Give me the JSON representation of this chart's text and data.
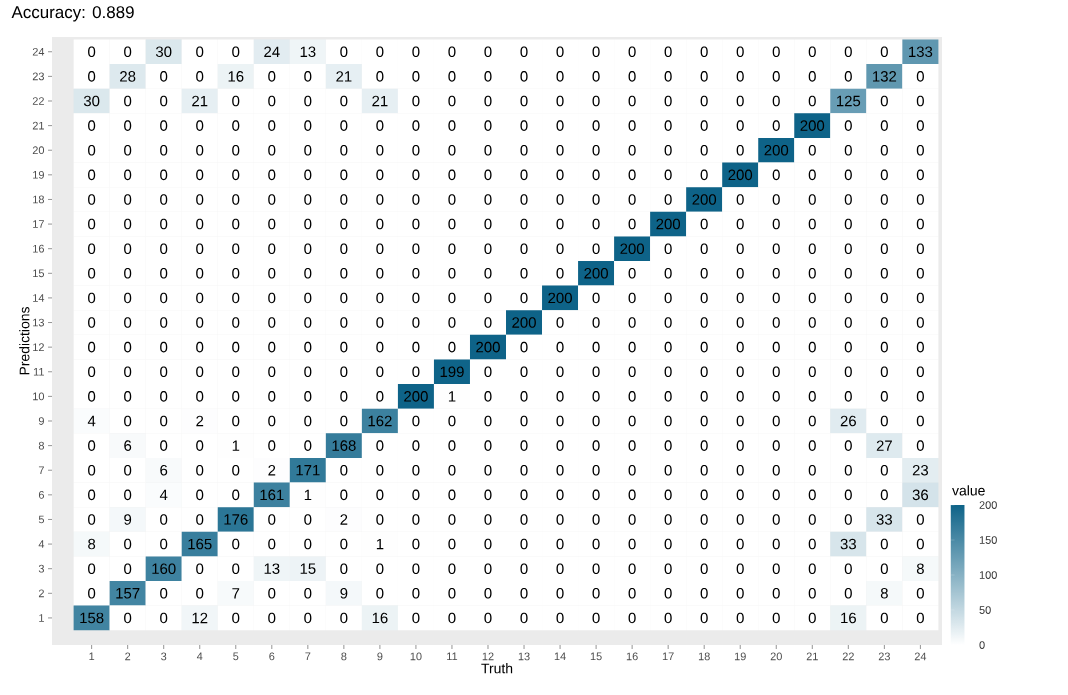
{
  "chart_data": {
    "type": "heatmap",
    "title": "Accuracy:  0.889",
    "xlabel": "Truth",
    "ylabel": "Predictions",
    "clabel": "value",
    "categories": [
      "1",
      "2",
      "3",
      "4",
      "5",
      "6",
      "7",
      "8",
      "9",
      "10",
      "11",
      "12",
      "13",
      "14",
      "15",
      "16",
      "17",
      "18",
      "19",
      "20",
      "21",
      "22",
      "23",
      "24"
    ],
    "y_categories": [
      "24",
      "23",
      "22",
      "21",
      "20",
      "19",
      "18",
      "17",
      "16",
      "15",
      "14",
      "13",
      "12",
      "11",
      "10",
      "9",
      "8",
      "7",
      "6",
      "5",
      "4",
      "3",
      "2",
      "1"
    ],
    "cells": [
      [
        0,
        0,
        30,
        0,
        0,
        24,
        13,
        0,
        0,
        0,
        0,
        0,
        0,
        0,
        0,
        0,
        0,
        0,
        0,
        0,
        0,
        0,
        0,
        133
      ],
      [
        0,
        28,
        0,
        0,
        16,
        0,
        0,
        21,
        0,
        0,
        0,
        0,
        0,
        0,
        0,
        0,
        0,
        0,
        0,
        0,
        0,
        0,
        132,
        0
      ],
      [
        30,
        0,
        0,
        21,
        0,
        0,
        0,
        0,
        21,
        0,
        0,
        0,
        0,
        0,
        0,
        0,
        0,
        0,
        0,
        0,
        0,
        125,
        0,
        0
      ],
      [
        0,
        0,
        0,
        0,
        0,
        0,
        0,
        0,
        0,
        0,
        0,
        0,
        0,
        0,
        0,
        0,
        0,
        0,
        0,
        0,
        200,
        0,
        0,
        0
      ],
      [
        0,
        0,
        0,
        0,
        0,
        0,
        0,
        0,
        0,
        0,
        0,
        0,
        0,
        0,
        0,
        0,
        0,
        0,
        0,
        200,
        0,
        0,
        0,
        0
      ],
      [
        0,
        0,
        0,
        0,
        0,
        0,
        0,
        0,
        0,
        0,
        0,
        0,
        0,
        0,
        0,
        0,
        0,
        0,
        200,
        0,
        0,
        0,
        0,
        0
      ],
      [
        0,
        0,
        0,
        0,
        0,
        0,
        0,
        0,
        0,
        0,
        0,
        0,
        0,
        0,
        0,
        0,
        0,
        200,
        0,
        0,
        0,
        0,
        0,
        0
      ],
      [
        0,
        0,
        0,
        0,
        0,
        0,
        0,
        0,
        0,
        0,
        0,
        0,
        0,
        0,
        0,
        0,
        200,
        0,
        0,
        0,
        0,
        0,
        0,
        0
      ],
      [
        0,
        0,
        0,
        0,
        0,
        0,
        0,
        0,
        0,
        0,
        0,
        0,
        0,
        0,
        0,
        200,
        0,
        0,
        0,
        0,
        0,
        0,
        0,
        0
      ],
      [
        0,
        0,
        0,
        0,
        0,
        0,
        0,
        0,
        0,
        0,
        0,
        0,
        0,
        0,
        200,
        0,
        0,
        0,
        0,
        0,
        0,
        0,
        0,
        0
      ],
      [
        0,
        0,
        0,
        0,
        0,
        0,
        0,
        0,
        0,
        0,
        0,
        0,
        0,
        200,
        0,
        0,
        0,
        0,
        0,
        0,
        0,
        0,
        0,
        0
      ],
      [
        0,
        0,
        0,
        0,
        0,
        0,
        0,
        0,
        0,
        0,
        0,
        0,
        200,
        0,
        0,
        0,
        0,
        0,
        0,
        0,
        0,
        0,
        0,
        0
      ],
      [
        0,
        0,
        0,
        0,
        0,
        0,
        0,
        0,
        0,
        0,
        0,
        200,
        0,
        0,
        0,
        0,
        0,
        0,
        0,
        0,
        0,
        0,
        0,
        0
      ],
      [
        0,
        0,
        0,
        0,
        0,
        0,
        0,
        0,
        0,
        0,
        199,
        0,
        0,
        0,
        0,
        0,
        0,
        0,
        0,
        0,
        0,
        0,
        0,
        0
      ],
      [
        0,
        0,
        0,
        0,
        0,
        0,
        0,
        0,
        0,
        200,
        1,
        0,
        0,
        0,
        0,
        0,
        0,
        0,
        0,
        0,
        0,
        0,
        0,
        0
      ],
      [
        4,
        0,
        0,
        2,
        0,
        0,
        0,
        0,
        162,
        0,
        0,
        0,
        0,
        0,
        0,
        0,
        0,
        0,
        0,
        0,
        0,
        26,
        0,
        0
      ],
      [
        0,
        6,
        0,
        0,
        1,
        0,
        0,
        168,
        0,
        0,
        0,
        0,
        0,
        0,
        0,
        0,
        0,
        0,
        0,
        0,
        0,
        0,
        27,
        0
      ],
      [
        0,
        0,
        6,
        0,
        0,
        2,
        171,
        0,
        0,
        0,
        0,
        0,
        0,
        0,
        0,
        0,
        0,
        0,
        0,
        0,
        0,
        0,
        0,
        23
      ],
      [
        0,
        0,
        4,
        0,
        0,
        161,
        1,
        0,
        0,
        0,
        0,
        0,
        0,
        0,
        0,
        0,
        0,
        0,
        0,
        0,
        0,
        0,
        0,
        36
      ],
      [
        0,
        9,
        0,
        0,
        176,
        0,
        0,
        2,
        0,
        0,
        0,
        0,
        0,
        0,
        0,
        0,
        0,
        0,
        0,
        0,
        0,
        0,
        33,
        0
      ],
      [
        8,
        0,
        0,
        165,
        0,
        0,
        0,
        0,
        1,
        0,
        0,
        0,
        0,
        0,
        0,
        0,
        0,
        0,
        0,
        0,
        0,
        33,
        0,
        0
      ],
      [
        0,
        0,
        160,
        0,
        0,
        13,
        15,
        0,
        0,
        0,
        0,
        0,
        0,
        0,
        0,
        0,
        0,
        0,
        0,
        0,
        0,
        0,
        0,
        8
      ],
      [
        0,
        157,
        0,
        0,
        7,
        0,
        0,
        9,
        0,
        0,
        0,
        0,
        0,
        0,
        0,
        0,
        0,
        0,
        0,
        0,
        0,
        0,
        8,
        0
      ],
      [
        158,
        0,
        0,
        12,
        0,
        0,
        0,
        0,
        16,
        0,
        0,
        0,
        0,
        0,
        0,
        0,
        0,
        0,
        0,
        0,
        0,
        16,
        0,
        0
      ]
    ],
    "data_labels": true,
    "clim": [
      0,
      200
    ],
    "cticks": [
      0,
      50,
      100,
      150,
      200
    ]
  }
}
